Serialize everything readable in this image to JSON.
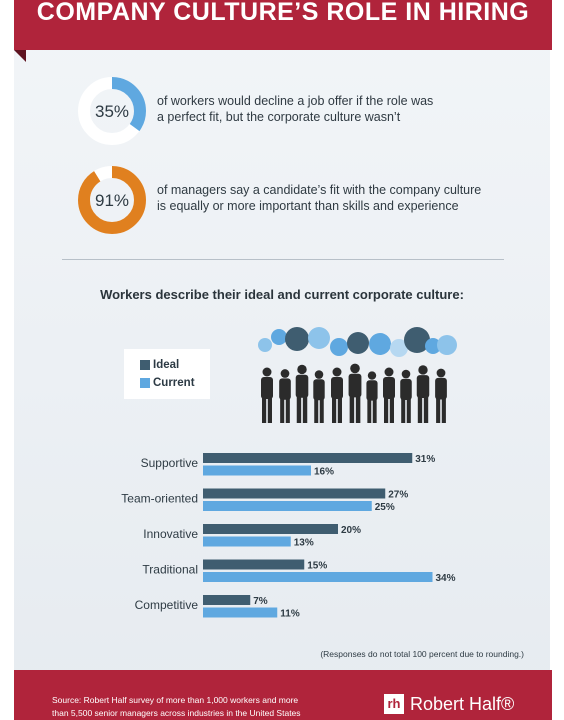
{
  "header": {
    "title": "COMPANY CULTURE’S ROLE IN HIRING"
  },
  "stats": [
    {
      "value": 35,
      "label": "35%",
      "text_line1": "of workers would decline a job offer if the role was",
      "text_line2": "a perfect fit, but the corporate culture wasn’t",
      "color": "#5fa8e0"
    },
    {
      "value": 91,
      "label": "91%",
      "text_line1": "of managers say a candidate’s fit with the company culture",
      "text_line2": "is equally or more important than skills and experience",
      "color": "#e0801f"
    }
  ],
  "chart_title": "Workers describe their ideal and current corporate culture:",
  "colors": {
    "ideal": "#3f5d70",
    "current": "#5fa8e0",
    "brand": "#b0243b",
    "ring_track": "#ffffff"
  },
  "chart_data": {
    "type": "bar",
    "orientation": "horizontal",
    "categories": [
      "Supportive",
      "Team-oriented",
      "Innovative",
      "Traditional",
      "Competitive"
    ],
    "series": [
      {
        "name": "Ideal",
        "values": [
          31,
          27,
          20,
          15,
          7
        ]
      },
      {
        "name": "Current",
        "values": [
          16,
          25,
          13,
          34,
          11
        ]
      }
    ],
    "value_suffix": "%",
    "xlim": [
      0,
      40
    ],
    "grid": false,
    "legend": "top-left"
  },
  "illustration": {
    "name": "crowd-with-speech-bubbles-icon"
  },
  "note": "(Responses do not total 100 percent due to rounding.)",
  "footer": {
    "source_line1": "Source: Robert Half survey of more than 1,000 workers and more",
    "source_line2": "than 5,500 senior managers across industries in the United States",
    "brand_mark": "rh",
    "brand_name": "Robert Half®"
  }
}
